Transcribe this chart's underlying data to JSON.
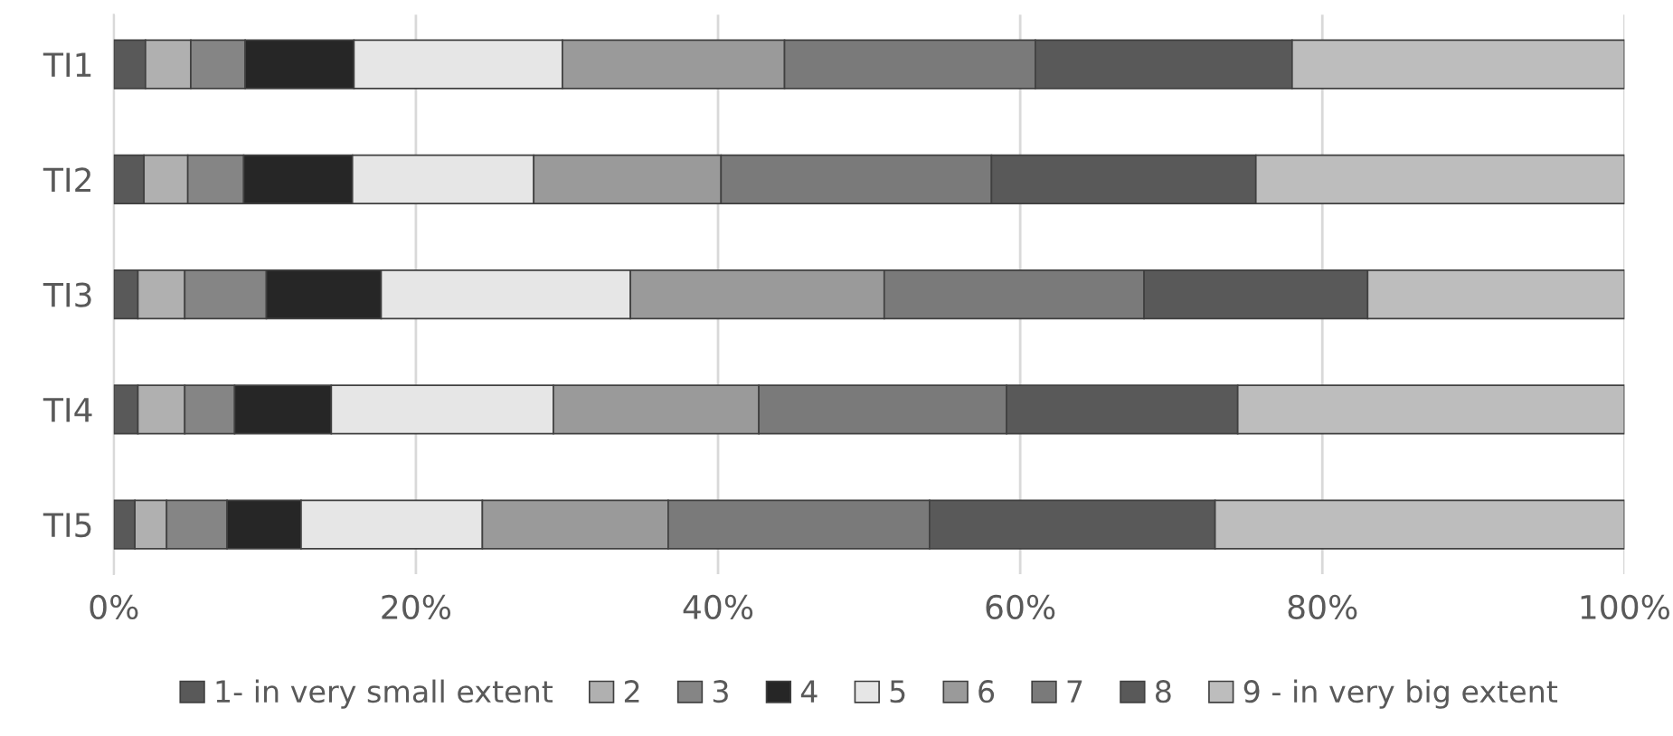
{
  "chart_data": {
    "type": "bar",
    "orientation": "horizontal",
    "stacked": true,
    "categories": [
      "TI1",
      "TI2",
      "TI3",
      "TI4",
      "TI5"
    ],
    "series": [
      {
        "name": "1- in very small extent",
        "color": "#595959",
        "values": [
          2.1,
          2.0,
          1.6,
          1.6,
          1.4
        ]
      },
      {
        "name": "2",
        "color": "#b0b0b0",
        "values": [
          3.0,
          2.9,
          3.1,
          3.1,
          2.1
        ]
      },
      {
        "name": "3",
        "color": "#858585",
        "values": [
          3.6,
          3.7,
          5.4,
          3.3,
          4.0
        ]
      },
      {
        "name": "4",
        "color": "#262626",
        "values": [
          7.2,
          7.2,
          7.6,
          6.4,
          4.9
        ]
      },
      {
        "name": "5",
        "color": "#e6e6e6",
        "values": [
          13.8,
          12.0,
          16.5,
          14.7,
          12.0
        ]
      },
      {
        "name": "6",
        "color": "#9a9a9a",
        "values": [
          14.7,
          12.4,
          16.8,
          13.6,
          12.3
        ]
      },
      {
        "name": "7",
        "color": "#7a7a7a",
        "values": [
          16.6,
          17.9,
          17.2,
          16.4,
          17.3
        ]
      },
      {
        "name": "8",
        "color": "#595959",
        "values": [
          17.0,
          17.5,
          14.8,
          15.3,
          18.9
        ]
      },
      {
        "name": "9 - in very big extent",
        "color": "#bdbdbd",
        "values": [
          22.0,
          24.4,
          17.0,
          25.6,
          27.1
        ]
      }
    ],
    "xlim": [
      0,
      100
    ],
    "xticks": [
      {
        "value": 0,
        "label": "0%"
      },
      {
        "value": 20,
        "label": "20%"
      },
      {
        "value": 40,
        "label": "40%"
      },
      {
        "value": 60,
        "label": "60%"
      },
      {
        "value": 80,
        "label": "80%"
      },
      {
        "value": 100,
        "label": "100%"
      }
    ],
    "grid": "x",
    "legend": "bottom"
  }
}
